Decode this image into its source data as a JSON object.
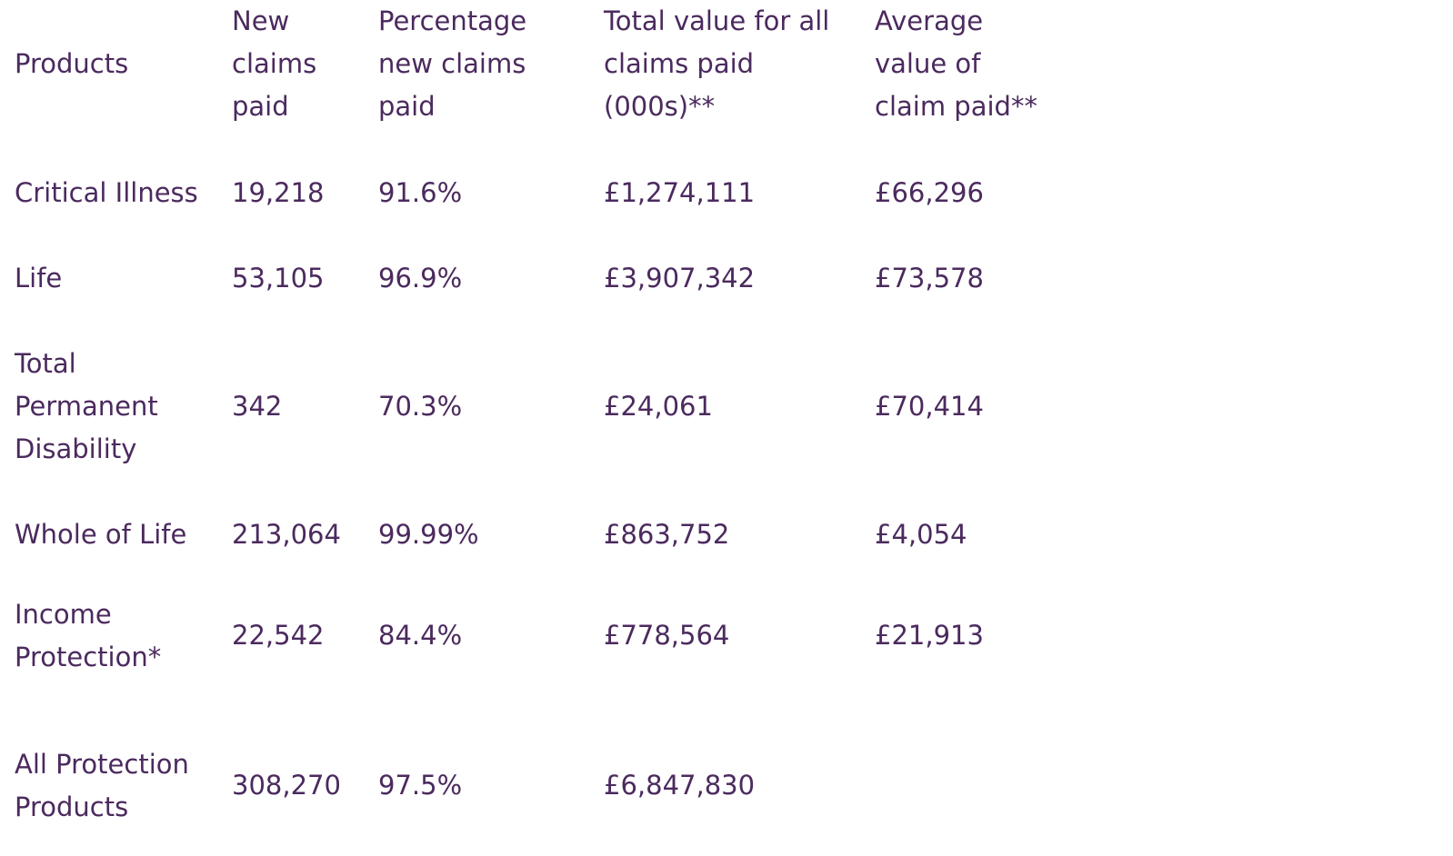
{
  "table": {
    "headers": [
      "Products",
      "New\nclaims\npaid",
      "Percentage\nnew claims\npaid",
      "Total value for all\nclaims paid\n(000s)**",
      "Average\nvalue of\nclaim paid**"
    ],
    "rows": [
      [
        "Critical Illness",
        "19,218",
        "91.6%",
        "£1,274,111",
        "£66,296"
      ],
      [
        "Life",
        "53,105",
        "96.9%",
        "£3,907,342",
        "£73,578"
      ],
      [
        "Total\nPermanent\nDisability",
        "342",
        "70.3%",
        "£24,061",
        "£70,414"
      ],
      [
        "Whole of Life",
        "213,064",
        "99.99%",
        "£863,752",
        "£4,054"
      ],
      [
        "Income\nProtection*",
        "22,542",
        "84.4%",
        "£778,564",
        "£21,913"
      ],
      [
        "All Protection\nProducts",
        "308,270",
        "97.5%",
        "£6,847,830",
        ""
      ]
    ]
  },
  "colors": {
    "text": "#4b2a5e",
    "background": "#ffffff"
  }
}
